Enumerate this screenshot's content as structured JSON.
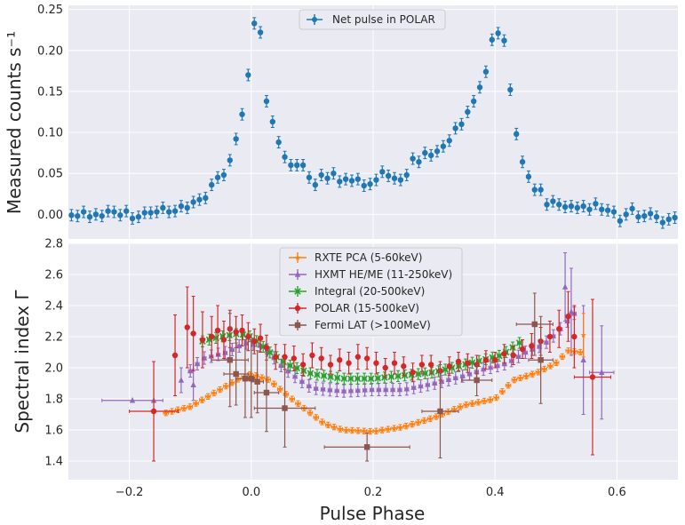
{
  "colors": {
    "axes_bg": "#eaeaf2",
    "grid": "#ffffff",
    "text": "#262626",
    "polar_blue": "#1f77b4",
    "rxte": "#ff7f0e",
    "hxmt": "#9467bd",
    "integral": "#2ca02c",
    "polar": "#d62728",
    "fermi": "#8c564b"
  },
  "chart_data": [
    {
      "type": "scatter",
      "title": "",
      "xlabel": "",
      "ylabel": "Measured counts s⁻¹",
      "xlim": [
        -0.3,
        0.7
      ],
      "ylim": [
        -0.03,
        0.255
      ],
      "yticks": [
        0.0,
        0.05,
        0.1,
        0.15,
        0.2,
        0.25
      ],
      "ytick_labels": [
        "0.00",
        "0.05",
        "0.10",
        "0.15",
        "0.20",
        "0.25"
      ],
      "legend": "top-center",
      "series": [
        {
          "name": "Net pulse in POLAR",
          "color": "#1f77b4",
          "marker": "circle",
          "x": [
            -0.295,
            -0.285,
            -0.275,
            -0.265,
            -0.255,
            -0.245,
            -0.235,
            -0.225,
            -0.215,
            -0.205,
            -0.195,
            -0.185,
            -0.175,
            -0.165,
            -0.155,
            -0.145,
            -0.135,
            -0.125,
            -0.115,
            -0.105,
            -0.095,
            -0.085,
            -0.075,
            -0.065,
            -0.055,
            -0.045,
            -0.035,
            -0.025,
            -0.015,
            -0.005,
            0.005,
            0.015,
            0.025,
            0.035,
            0.045,
            0.055,
            0.065,
            0.075,
            0.085,
            0.095,
            0.105,
            0.115,
            0.125,
            0.135,
            0.145,
            0.155,
            0.165,
            0.175,
            0.185,
            0.195,
            0.205,
            0.215,
            0.225,
            0.235,
            0.245,
            0.255,
            0.265,
            0.275,
            0.285,
            0.295,
            0.305,
            0.315,
            0.325,
            0.335,
            0.345,
            0.355,
            0.365,
            0.375,
            0.385,
            0.395,
            0.405,
            0.415,
            0.425,
            0.435,
            0.445,
            0.455,
            0.465,
            0.475,
            0.485,
            0.495,
            0.505,
            0.515,
            0.525,
            0.535,
            0.545,
            0.555,
            0.565,
            0.575,
            0.585,
            0.595,
            0.605,
            0.615,
            0.625,
            0.635,
            0.645,
            0.655,
            0.665,
            0.675,
            0.685,
            0.695
          ],
          "y": [
            -0.001,
            -0.002,
            0.003,
            -0.003,
            0.0,
            -0.002,
            0.004,
            0.003,
            -0.001,
            0.004,
            -0.005,
            -0.003,
            0.002,
            0.002,
            0.003,
            0.008,
            0.003,
            0.004,
            0.01,
            0.008,
            0.015,
            0.018,
            0.02,
            0.036,
            0.045,
            0.048,
            0.066,
            0.092,
            0.122,
            0.17,
            0.233,
            0.222,
            0.138,
            0.113,
            0.088,
            0.07,
            0.06,
            0.06,
            0.06,
            0.045,
            0.036,
            0.048,
            0.044,
            0.05,
            0.04,
            0.043,
            0.041,
            0.043,
            0.035,
            0.037,
            0.042,
            0.052,
            0.047,
            0.044,
            0.042,
            0.048,
            0.068,
            0.064,
            0.075,
            0.072,
            0.077,
            0.083,
            0.09,
            0.105,
            0.11,
            0.125,
            0.138,
            0.155,
            0.174,
            0.213,
            0.221,
            0.212,
            0.152,
            0.098,
            0.064,
            0.046,
            0.03,
            0.03,
            0.012,
            0.016,
            0.012,
            0.009,
            0.01,
            0.008,
            0.01,
            0.006,
            0.013,
            0.006,
            0.005,
            0.003,
            -0.008,
            0.0,
            0.007,
            -0.003,
            -0.002,
            0.001,
            -0.003,
            -0.01,
            -0.006,
            -0.004
          ],
          "err": 0.007
        }
      ]
    },
    {
      "type": "scatter",
      "title": "",
      "xlabel": "Pulse Phase",
      "ylabel": "Spectral index Γ",
      "xlim": [
        -0.3,
        0.7
      ],
      "ylim": [
        1.28,
        2.8
      ],
      "xticks": [
        -0.2,
        0.0,
        0.2,
        0.4,
        0.6
      ],
      "xtick_labels": [
        "−0.2",
        "0.0",
        "0.2",
        "0.4",
        "0.6"
      ],
      "yticks": [
        1.4,
        1.6,
        1.8,
        2.0,
        2.2,
        2.4,
        2.6,
        2.8
      ],
      "ytick_labels": [
        "1.4",
        "1.6",
        "1.8",
        "2.0",
        "2.2",
        "2.4",
        "2.6",
        "2.8"
      ],
      "legend": "top-center",
      "series": [
        {
          "name": "RXTE PCA (5-60keV)",
          "color": "#ff7f0e",
          "marker": "star",
          "anchors": [
            [
              -0.14,
              1.71
            ],
            [
              -0.1,
              1.75
            ],
            [
              -0.06,
              1.84
            ],
            [
              -0.02,
              1.93
            ],
            [
              0.0,
              1.96
            ],
            [
              0.03,
              1.92
            ],
            [
              0.06,
              1.82
            ],
            [
              0.1,
              1.7
            ],
            [
              0.12,
              1.64
            ],
            [
              0.15,
              1.6
            ],
            [
              0.2,
              1.59
            ],
            [
              0.25,
              1.62
            ],
            [
              0.3,
              1.68
            ],
            [
              0.35,
              1.76
            ],
            [
              0.4,
              1.8
            ],
            [
              0.43,
              1.92
            ],
            [
              0.47,
              1.97
            ],
            [
              0.5,
              2.03
            ],
            [
              0.52,
              2.11
            ],
            [
              0.54,
              2.1
            ]
          ],
          "x_range": [
            -0.14,
            0.54
          ],
          "n_points": 70,
          "outlier": {
            "x": 0.545,
            "y": 2.21,
            "err": 0.14
          },
          "err_y": 0.018,
          "err_x": 0.004
        },
        {
          "name": "HXMT HE/ME (11-250keV)",
          "color": "#9467bd",
          "marker": "triangle",
          "anchors": [
            [
              -0.1,
              1.98
            ],
            [
              -0.08,
              2.06
            ],
            [
              -0.04,
              2.1
            ],
            [
              -0.01,
              2.16
            ],
            [
              0.02,
              2.14
            ],
            [
              0.05,
              2.01
            ],
            [
              0.08,
              1.92
            ],
            [
              0.1,
              1.87
            ],
            [
              0.15,
              1.85
            ],
            [
              0.2,
              1.86
            ],
            [
              0.25,
              1.86
            ],
            [
              0.3,
              1.9
            ],
            [
              0.35,
              1.95
            ],
            [
              0.38,
              1.99
            ],
            [
              0.42,
              2.03
            ],
            [
              0.45,
              2.1
            ],
            [
              0.48,
              2.15
            ],
            [
              0.5,
              2.22
            ],
            [
              0.53,
              2.35
            ]
          ],
          "x_range": [
            -0.1,
            0.53
          ],
          "n_points": 56,
          "outliers": [
            {
              "x": -0.195,
              "y": 1.79,
              "err": 0.0,
              "xerr": 0.05
            },
            {
              "x": -0.16,
              "y": 1.79,
              "err": 0.0,
              "xerr": 0.0
            },
            {
              "x": -0.115,
              "y": 1.92,
              "err": 0.08,
              "xerr": 0.0
            },
            {
              "x": -0.095,
              "y": 1.89,
              "err": 0.1,
              "xerr": 0.0
            },
            {
              "x": 0.515,
              "y": 2.52,
              "err": 0.22,
              "xerr": 0.0
            },
            {
              "x": 0.525,
              "y": 2.36,
              "err": 0.28,
              "xerr": 0.0
            },
            {
              "x": 0.545,
              "y": 2.05,
              "err": 0.35,
              "xerr": 0.0
            },
            {
              "x": 0.575,
              "y": 1.97,
              "err": 0.3,
              "xerr": 0.02
            }
          ],
          "err_y": 0.04
        },
        {
          "name": "Integral (20-500keV)",
          "color": "#2ca02c",
          "marker": "x",
          "anchors": [
            [
              -0.08,
              2.17
            ],
            [
              -0.05,
              2.2
            ],
            [
              -0.02,
              2.22
            ],
            [
              0.0,
              2.2
            ],
            [
              0.03,
              2.1
            ],
            [
              0.06,
              2.02
            ],
            [
              0.1,
              1.96
            ],
            [
              0.15,
              1.93
            ],
            [
              0.2,
              1.93
            ],
            [
              0.25,
              1.95
            ],
            [
              0.3,
              1.97
            ],
            [
              0.35,
              2.02
            ],
            [
              0.38,
              2.05
            ],
            [
              0.41,
              2.08
            ],
            [
              0.44,
              2.16
            ]
          ],
          "x_range": [
            -0.08,
            0.44
          ],
          "n_points": 48,
          "err_y": 0.035
        },
        {
          "name": "POLAR (15-500keV)",
          "color": "#d62728",
          "marker": "circle",
          "points": [
            [
              -0.16,
              1.72,
              0.32,
              0.04
            ],
            [
              -0.125,
              2.08,
              0.26,
              0.0
            ],
            [
              -0.105,
              2.26,
              0.26,
              0.0
            ],
            [
              -0.095,
              2.22,
              0.24,
              0.0
            ],
            [
              -0.08,
              2.18,
              0.18,
              0.0
            ],
            [
              -0.065,
              2.2,
              0.13,
              0.0
            ],
            [
              -0.055,
              2.24,
              0.16,
              0.0
            ],
            [
              -0.045,
              2.18,
              0.12,
              0.0
            ],
            [
              -0.035,
              2.25,
              0.12,
              0.0
            ],
            [
              -0.025,
              2.23,
              0.1,
              0.0
            ],
            [
              -0.015,
              2.24,
              0.1,
              0.0
            ],
            [
              -0.005,
              2.2,
              0.09,
              0.0
            ],
            [
              0.005,
              2.17,
              0.08,
              0.0
            ],
            [
              0.015,
              2.19,
              0.09,
              0.0
            ],
            [
              0.025,
              2.13,
              0.08,
              0.0
            ],
            [
              0.04,
              2.07,
              0.08,
              0.0
            ],
            [
              0.055,
              2.07,
              0.08,
              0.0
            ],
            [
              0.07,
              2.06,
              0.08,
              0.0
            ],
            [
              0.085,
              2.02,
              0.07,
              0.0
            ],
            [
              0.1,
              2.08,
              0.08,
              0.0
            ],
            [
              0.115,
              2.06,
              0.07,
              0.0
            ],
            [
              0.13,
              2.02,
              0.06,
              0.0
            ],
            [
              0.145,
              2.05,
              0.07,
              0.0
            ],
            [
              0.16,
              2.03,
              0.07,
              0.0
            ],
            [
              0.175,
              2.07,
              0.08,
              0.0
            ],
            [
              0.19,
              2.06,
              0.07,
              0.0
            ],
            [
              0.205,
              2.03,
              0.07,
              0.0
            ],
            [
              0.22,
              2.0,
              0.06,
              0.0
            ],
            [
              0.235,
              2.03,
              0.07,
              0.0
            ],
            [
              0.25,
              2.01,
              0.06,
              0.0
            ],
            [
              0.265,
              1.97,
              0.06,
              0.0
            ],
            [
              0.28,
              2.02,
              0.06,
              0.0
            ],
            [
              0.295,
              2.02,
              0.06,
              0.0
            ],
            [
              0.31,
              1.98,
              0.06,
              0.0
            ],
            [
              0.325,
              2.01,
              0.06,
              0.0
            ],
            [
              0.34,
              2.04,
              0.06,
              0.0
            ],
            [
              0.355,
              2.03,
              0.06,
              0.0
            ],
            [
              0.37,
              2.02,
              0.06,
              0.0
            ],
            [
              0.385,
              2.05,
              0.06,
              0.0
            ],
            [
              0.4,
              2.05,
              0.05,
              0.0
            ],
            [
              0.415,
              2.09,
              0.06,
              0.0
            ],
            [
              0.43,
              2.08,
              0.06,
              0.0
            ],
            [
              0.445,
              2.12,
              0.06,
              0.0
            ],
            [
              0.46,
              2.14,
              0.08,
              0.0
            ],
            [
              0.475,
              2.17,
              0.09,
              0.0
            ],
            [
              0.49,
              2.2,
              0.1,
              0.0
            ],
            [
              0.505,
              2.25,
              0.12,
              0.0
            ],
            [
              0.52,
              2.33,
              0.16,
              0.0
            ],
            [
              0.53,
              2.2,
              0.2,
              0.0
            ],
            [
              0.56,
              1.94,
              0.5,
              0.03
            ]
          ]
        },
        {
          "name": "Fermi LAT (>100MeV)",
          "color": "#8c564b",
          "marker": "square",
          "points": [
            [
              -0.035,
              2.05,
              0.3,
              0.03
            ],
            [
              -0.025,
              1.96,
              0.2,
              0.02
            ],
            [
              -0.01,
              1.93,
              0.25,
              0.015
            ],
            [
              0.0,
              1.93,
              0.25,
              0.005
            ],
            [
              0.01,
              1.91,
              0.2,
              0.01
            ],
            [
              0.025,
              1.84,
              0.25,
              0.02
            ],
            [
              0.055,
              1.74,
              0.25,
              0.05
            ],
            [
              0.19,
              1.49,
              0.09,
              0.07
            ],
            [
              0.31,
              1.72,
              0.3,
              0.03
            ],
            [
              0.37,
              1.92,
              0.1,
              0.025
            ],
            [
              0.465,
              2.28,
              0.2,
              0.03
            ],
            [
              0.475,
              2.05,
              0.28,
              0.02
            ]
          ]
        }
      ]
    }
  ]
}
